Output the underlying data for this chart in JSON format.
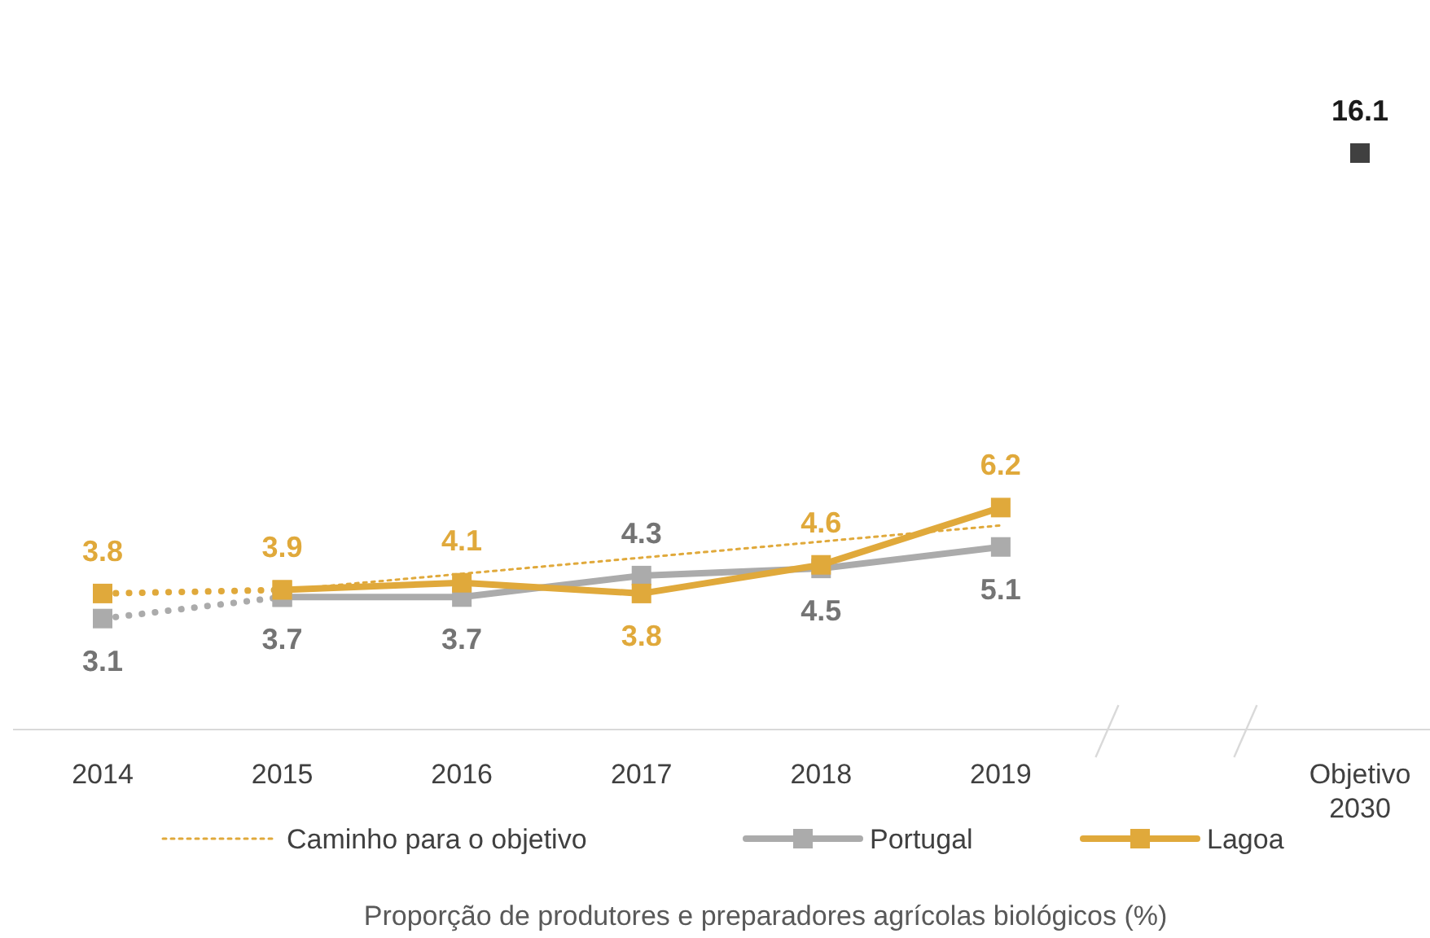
{
  "chart_data": {
    "type": "line",
    "title": "Proporção de produtores e preparadores agrícolas biológicos (%)",
    "categories": [
      "2014",
      "2015",
      "2016",
      "2017",
      "2018",
      "2019",
      null,
      "Objetivo 2030"
    ],
    "legend": "bottom",
    "series": [
      {
        "name": "Caminho para o objetivo",
        "color": "#e0a93b",
        "line_style": "dotted",
        "marker": "none",
        "values": [
          null,
          3.9,
          4.35,
          4.8,
          5.25,
          5.7,
          null,
          null
        ]
      },
      {
        "color": "#ababab",
        "line_style": "dotted",
        "marker": "square",
        "values": [
          3.1,
          3.7,
          null,
          null,
          null,
          null,
          null,
          null
        ],
        "value_labels": [
          "3.1",
          null,
          null,
          null,
          null,
          null,
          null,
          null
        ]
      },
      {
        "color": "#e0a93b",
        "line_style": "dotted",
        "marker": "square",
        "values": [
          3.8,
          3.9,
          null,
          null,
          null,
          null,
          null,
          null
        ],
        "value_labels": [
          "3.8",
          null,
          null,
          null,
          null,
          null,
          null,
          null
        ]
      },
      {
        "name": "Portugal",
        "color": "#ababab",
        "line_style": "solid",
        "marker": "square",
        "values": [
          null,
          3.7,
          3.7,
          4.3,
          4.5,
          5.1,
          null,
          null
        ],
        "value_labels": [
          null,
          "3.7",
          "3.7",
          "4.3",
          "4.5",
          "5.1",
          null,
          null
        ]
      },
      {
        "name": "Lagoa",
        "color": "#e0a93b",
        "line_style": "solid",
        "marker": "square",
        "values": [
          null,
          3.9,
          4.1,
          3.8,
          4.6,
          6.2,
          null,
          null
        ],
        "value_labels": [
          null,
          "3.9",
          "4.1",
          "3.8",
          "4.6",
          "6.2",
          null,
          null
        ]
      },
      {
        "type": "scatter",
        "color": "#404040",
        "marker": "square",
        "values": [
          null,
          null,
          null,
          null,
          null,
          null,
          null,
          16.1
        ],
        "value_labels": [
          null,
          null,
          null,
          null,
          null,
          null,
          null,
          "16.1"
        ]
      }
    ]
  }
}
